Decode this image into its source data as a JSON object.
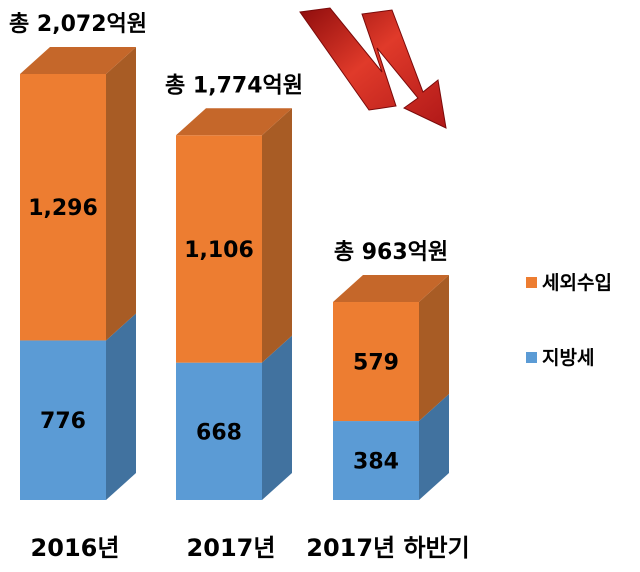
{
  "chart_data": {
    "type": "bar",
    "stacked": true,
    "style": "3d-column",
    "categories": [
      "2016년",
      "2017년",
      "2017년 하반기"
    ],
    "series": [
      {
        "name": "지방세",
        "values": [
          776,
          668,
          384
        ],
        "color": "#5b9bd5"
      },
      {
        "name": "세외수입",
        "values": [
          1296,
          1106,
          579
        ],
        "color": "#ed7d31"
      }
    ],
    "totals": [
      "총 2,072억원",
      "총 1,774억원",
      "총 963억원"
    ],
    "value_labels": [
      [
        "776",
        "668",
        "384"
      ],
      [
        "1,296",
        "1,106",
        "579"
      ]
    ],
    "title": "",
    "xlabel": "",
    "ylabel": "",
    "ylim": [
      0,
      2072
    ],
    "grid": false,
    "legend": {
      "placement": "right",
      "order": [
        "세외수입",
        "지방세"
      ]
    },
    "annotation": {
      "icon": "down-trend-arrow-icon",
      "color": "#cc2020"
    },
    "colors": {
      "series_front": [
        "#5b9bd5",
        "#ed7d31"
      ],
      "series_side": [
        "#41729f",
        "#a85c25"
      ],
      "series_top": [
        "#8db8e3",
        "#c5672a"
      ]
    }
  }
}
